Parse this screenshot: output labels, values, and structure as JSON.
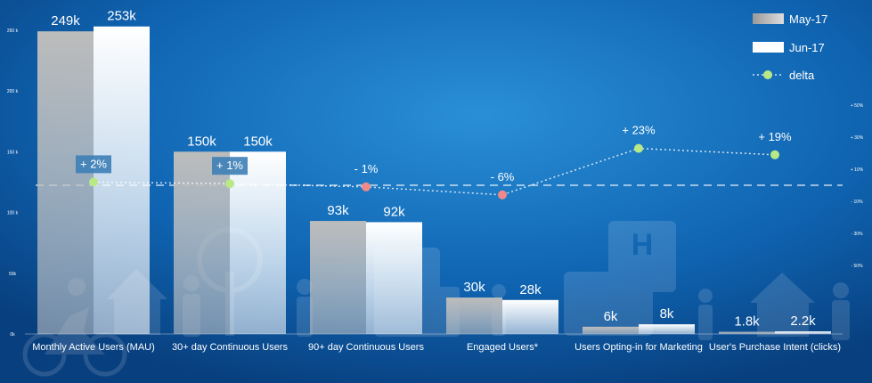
{
  "chart_data": {
    "type": "bar",
    "categories": [
      "Monthly Active Users (MAU)",
      "30+ day Continuous Users",
      "90+ day Continuous Users",
      "Engaged Users*",
      "Users Opting-in for Marketing",
      "User's Purchase Intent (clicks)"
    ],
    "series": [
      {
        "name": "May-17",
        "values": [
          249,
          150,
          93,
          30,
          6,
          1.8
        ],
        "labels": [
          "249k",
          "150k",
          "93k",
          "30k",
          "6k",
          "1.8k"
        ],
        "color": "#b9b9b9"
      },
      {
        "name": "Jun-17",
        "values": [
          253,
          150,
          92,
          28,
          8,
          2.2
        ],
        "labels": [
          "253k",
          "150k",
          "92k",
          "28k",
          "8k",
          "2.2k"
        ],
        "color": "#ffffff"
      }
    ],
    "delta": {
      "name": "delta",
      "values": [
        2,
        1,
        -1,
        -6,
        23,
        19
      ],
      "labels": [
        "+ 2%",
        "+ 1%",
        "- 1%",
        "- 6%",
        "+ 23%",
        "+ 19%"
      ],
      "positive_color": "#b8e986",
      "negative_color": "#f08a8a"
    },
    "y_left": {
      "ticks": [
        0,
        50,
        100,
        150,
        200,
        250
      ],
      "tick_labels": [
        "0k",
        "50k",
        "100 k",
        "150 k",
        "200 k",
        "250 k"
      ],
      "ylim": [
        0,
        255
      ]
    },
    "y_right": {
      "ticks": [
        -50,
        -30,
        -10,
        10,
        30,
        50
      ],
      "tick_labels": [
        "- 50%",
        "- 30%",
        "- 10%",
        "+ 10%",
        "+ 30%",
        "+ 50%"
      ],
      "ylim": [
        -50,
        50
      ]
    },
    "legend_position": "top-right",
    "background_color": "#0d5fa8"
  }
}
